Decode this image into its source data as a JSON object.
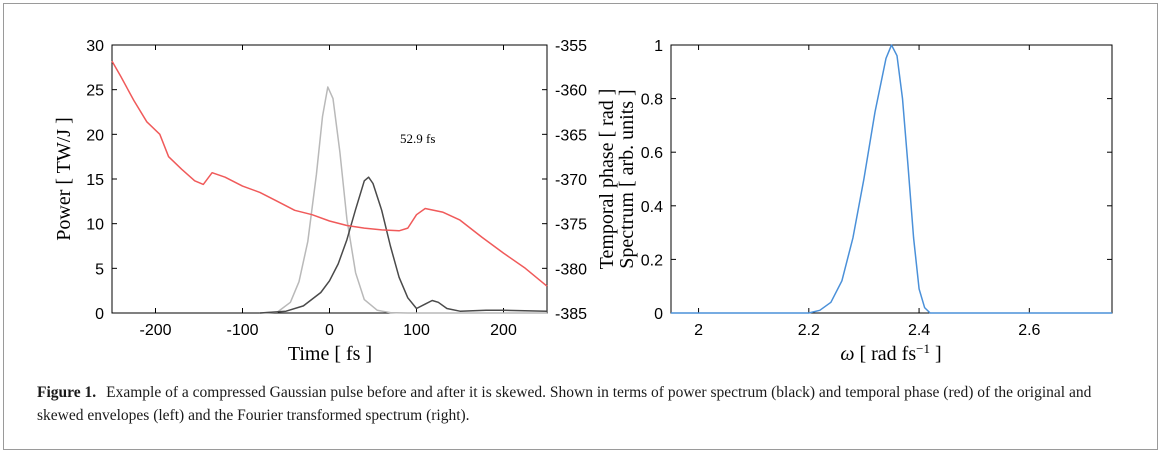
{
  "caption": {
    "label": "Figure 1.",
    "text": "Example of a compressed Gaussian pulse before and after it is skewed. Shown in terms of power spectrum (black) and temporal phase (red) of the original and skewed envelopes (left) and the Fourier transformed spectrum (right)."
  },
  "colors": {
    "phase": "#f05a5a",
    "original_envelope": "#b9b9b9",
    "skewed_envelope": "#4a4a4a",
    "spectrum": "#4a90d9",
    "axis": "#000000"
  },
  "chart_data": [
    {
      "type": "line",
      "xlabel": "Time [ fs ]",
      "ylabel_left": "Power [ TW/J ]",
      "ylabel_right": "Temporal phase [ rad ]",
      "xlim": [
        -250,
        250
      ],
      "ylim_left": [
        0,
        30
      ],
      "ylim_right": [
        -385,
        -355
      ],
      "xticks": [
        -200,
        -100,
        0,
        100,
        200
      ],
      "yticks_left": [
        0,
        5,
        10,
        15,
        20,
        25,
        30
      ],
      "yticks_right": [
        -385,
        -380,
        -375,
        -370,
        -365,
        -360,
        -355
      ],
      "annotation": "52.9 fs",
      "grid": false,
      "series": [
        {
          "axis": "left",
          "color": "#b9b9b9",
          "x": [
            -80,
            -60,
            -45,
            -35,
            -25,
            -15,
            -8,
            -2,
            4,
            12,
            20,
            30,
            40,
            55,
            70,
            90,
            250
          ],
          "y": [
            0,
            0.1,
            1.2,
            3.5,
            8,
            15.5,
            22,
            25.3,
            24,
            18,
            10.5,
            4.5,
            1.5,
            0.3,
            0.05,
            0,
            0
          ]
        },
        {
          "axis": "left",
          "color": "#4a4a4a",
          "x": [
            -80,
            -50,
            -30,
            -10,
            0,
            10,
            20,
            30,
            40,
            45,
            50,
            60,
            70,
            80,
            90,
            100,
            110,
            118,
            125,
            135,
            150,
            180,
            200,
            250
          ],
          "y": [
            0,
            0.2,
            0.8,
            2.3,
            3.6,
            5.5,
            8.2,
            11.6,
            14.8,
            15.2,
            14.5,
            11.5,
            7.5,
            4,
            1.7,
            0.5,
            1.0,
            1.4,
            1.2,
            0.5,
            0.2,
            0.3,
            0.3,
            0.2
          ]
        },
        {
          "axis": "right",
          "color": "#f05a5a",
          "x": [
            -250,
            -240,
            -225,
            -210,
            -195,
            -185,
            -170,
            -155,
            -145,
            -135,
            -120,
            -100,
            -80,
            -60,
            -40,
            -20,
            0,
            20,
            40,
            60,
            80,
            90,
            100,
            110,
            130,
            150,
            175,
            200,
            225,
            250
          ],
          "y": [
            -356.8,
            -358.5,
            -361.2,
            -363.6,
            -365.0,
            -367.5,
            -368.9,
            -370.2,
            -370.6,
            -369.3,
            -369.8,
            -370.8,
            -371.5,
            -372.5,
            -373.5,
            -374.0,
            -374.7,
            -375.2,
            -375.5,
            -375.7,
            -375.8,
            -375.5,
            -374.0,
            -373.3,
            -373.7,
            -374.6,
            -376.5,
            -378.3,
            -380.0,
            -382.0
          ]
        }
      ]
    },
    {
      "type": "line",
      "xlabel": "ω [ rad fs−1 ]",
      "ylabel": "Spectrum [ arb. units ]",
      "xlim": [
        1.95,
        2.75
      ],
      "ylim": [
        0,
        1
      ],
      "xticks": [
        2,
        2.2,
        2.4,
        2.6
      ],
      "yticks": [
        0,
        0.2,
        0.4,
        0.6,
        0.8,
        1
      ],
      "grid": false,
      "series": [
        {
          "color": "#4a90d9",
          "x": [
            1.95,
            2.2,
            2.22,
            2.24,
            2.26,
            2.28,
            2.3,
            2.32,
            2.34,
            2.35,
            2.36,
            2.37,
            2.38,
            2.39,
            2.4,
            2.41,
            2.42,
            2.75
          ],
          "y": [
            0,
            0,
            0.01,
            0.04,
            0.12,
            0.28,
            0.5,
            0.75,
            0.95,
            1.0,
            0.96,
            0.8,
            0.55,
            0.28,
            0.09,
            0.02,
            0,
            0
          ]
        }
      ]
    }
  ]
}
